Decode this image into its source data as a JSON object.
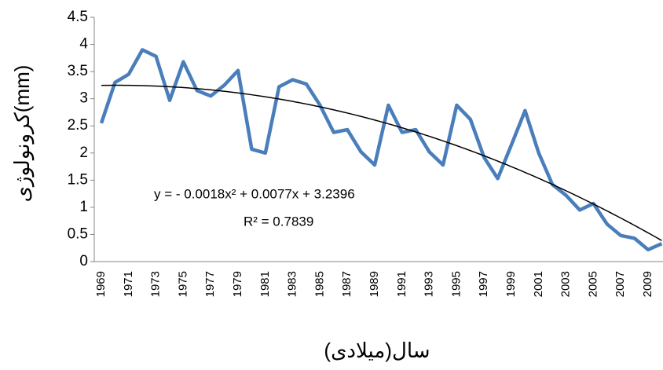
{
  "chart_data": {
    "type": "line",
    "y_label": "کرونولوژی(mm)",
    "x_label": "سال(میلادی)",
    "categories": [
      "1969",
      null,
      "1971",
      null,
      "1973",
      null,
      "1975",
      null,
      "1977",
      null,
      "1979",
      null,
      "1981",
      null,
      "1983",
      null,
      "1985",
      null,
      "1987",
      null,
      "1989",
      null,
      "1991",
      null,
      "1993",
      null,
      "1995",
      null,
      "1997",
      null,
      "1999",
      null,
      "2001",
      null,
      "2003",
      null,
      "2005",
      null,
      "2007",
      null,
      "2009",
      null
    ],
    "series": [
      {
        "color": "#4a7ebb",
        "values": [
          2.55,
          3.3,
          3.45,
          3.9,
          3.78,
          2.97,
          3.68,
          3.15,
          3.05,
          3.25,
          3.52,
          2.07,
          2.0,
          3.22,
          3.35,
          3.27,
          2.88,
          2.38,
          2.43,
          2.02,
          1.78,
          2.88,
          2.38,
          2.43,
          2.02,
          1.78,
          2.88,
          2.62,
          1.92,
          1.53,
          2.15,
          2.78,
          2.0,
          1.42,
          1.22,
          0.95,
          1.07,
          0.69,
          0.48,
          0.43,
          0.22,
          0.33
        ]
      }
    ],
    "trendline": {
      "color": "#000000",
      "coefficients": [
        -0.0018,
        0.0077,
        3.2396
      ],
      "equation": "y = - 0.0018x²  +  0.0077x  + 3.2396",
      "r_squared_label": "R² =  0.7839"
    },
    "ylim": [
      0,
      4.5
    ],
    "yticks": [
      0,
      0.5,
      1,
      1.5,
      2,
      2.5,
      3,
      3.5,
      4,
      4.5
    ]
  }
}
